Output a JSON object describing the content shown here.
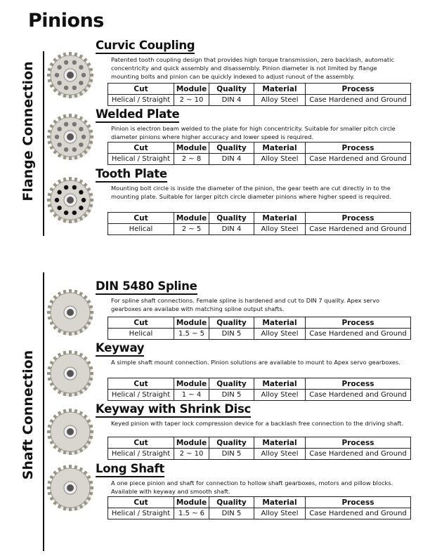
{
  "title": "Pinions",
  "sections": [
    {
      "label": "Flange Connection"
    },
    {
      "label": "Shaft Connection"
    }
  ],
  "columns": [
    "Cut",
    "Module",
    "Quality",
    "Material",
    "Process"
  ],
  "products": [
    {
      "name": "Curvic Coupling",
      "description": "Patented tooth coupling design that provides high torque transmission, zero backlash, automatic concentricity and quick assembly and disassembly.  Pinion diameter is not limited by flange mounting bolts and pinion can be quickly indexed to adjust runout of the assembly.",
      "row": [
        "Helical / Straight",
        "2 ~ 10",
        "DIN 4",
        "Alloy Steel",
        "Case Hardened and Ground"
      ]
    },
    {
      "name": "Welded Plate",
      "description": "Pinion is electron beam welded to the plate for high concentricity.  Suitable for smaller pitch circle diameter pinions where higher accuracy and lower speed is required.",
      "row": [
        "Helical / Straight",
        "2 ~ 8",
        "DIN 4",
        "Alloy Steel",
        "Case Hardened and Ground"
      ]
    },
    {
      "name": "Tooth Plate",
      "description": "Mounting bolt circle is inside the diameter of the pinion, the gear teeth are cut directly in to the mounting plate.  Suitable for larger pitch circle diameter pinions where higher speed is required.",
      "row": [
        "Helical",
        "2 ~ 5",
        "DIN 4",
        "Alloy Steel",
        "Case Hardened and Ground"
      ]
    },
    {
      "name": "DIN 5480 Spline",
      "description": "For spline shaft connections.  Female spline is hardened and cut to DIN 7 quality.  Apex servo gearboxes are availabe with matching spline output shafts.",
      "row": [
        "Helical",
        "1.5 ~ 5",
        "DIN 5",
        "Alloy Steel",
        "Case Hardened and Ground"
      ]
    },
    {
      "name": "Keyway",
      "description": "A simple shaft mount connection.  Pinion solutions are available to mount to Apex servo gearboxes.",
      "row": [
        "Helical / Straight",
        "1 ~ 4",
        "DIN 5",
        "Alloy Steel",
        "Case Hardened and Ground"
      ]
    },
    {
      "name": "Keyway with Shrink Disc",
      "description": "Keyed pinion with taper lock compression device for a backlash free connection to the driving shaft.",
      "row": [
        "Helical / Straight",
        "2 ~ 10",
        "DIN 5",
        "Alloy Steel",
        "Case Hardened and Ground"
      ]
    },
    {
      "name": "Long Shaft",
      "description": "A one piece pinion and shaft for connection to hollow shaft gearboxes, motors and pillow blocks.  Available with keyway and smooth shaft.",
      "row": [
        "Helical / Straight",
        "1.5 ~ 6",
        "DIN 5",
        "Alloy Steel",
        "Case Hardened and Ground"
      ]
    }
  ]
}
